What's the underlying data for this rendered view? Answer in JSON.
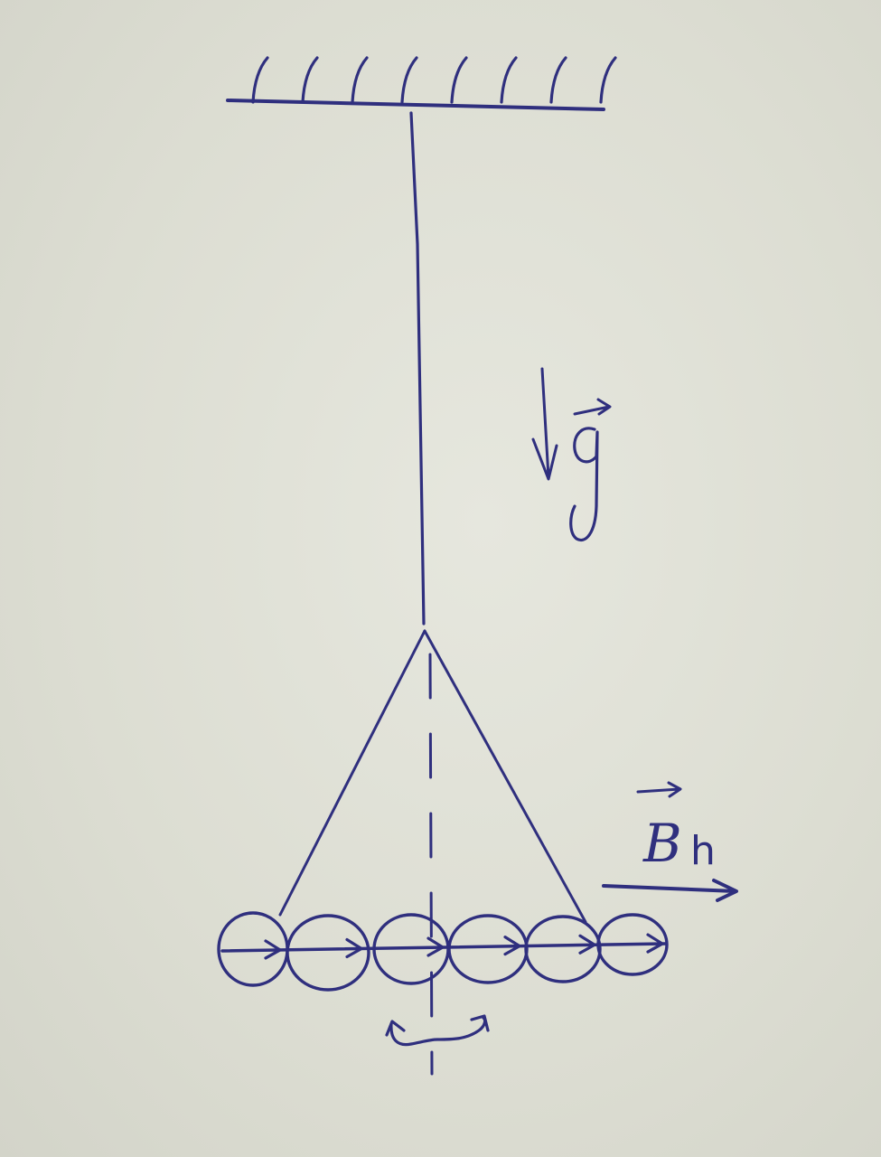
{
  "labels": {
    "gravity": "g",
    "field_B": "B",
    "field_sub": "h"
  },
  "ink_color": "#2f2f7e",
  "paper_color": "#dfe0d6",
  "ceiling_hatch_count": 8,
  "magnet_count": 6
}
